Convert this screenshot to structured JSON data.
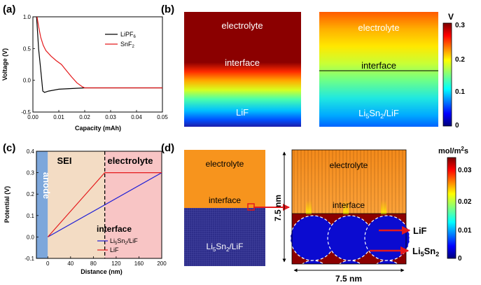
{
  "figure": {
    "panel_labels": [
      "(a)",
      "(b)",
      "(c)",
      "(d)"
    ]
  },
  "colors": {
    "lipf6": "#000000",
    "snf2": "#e41a1c",
    "li5sn2": "#1f1fd6",
    "lif": "#e41a1c",
    "electrolyte_a": "#8b0000",
    "electrolyte_d": "#f7941d",
    "anode_band": "#7da7db",
    "sei_region": "#f3dcc4",
    "electrolyte_region": "#f8c5c5",
    "li5sn2_solid": "#2b2b86"
  },
  "panel_b": {
    "left_labels": {
      "top": "electrolyte",
      "middle": "interface",
      "bottom": "LiF"
    },
    "right_labels": {
      "top": "electrolyte",
      "middle": "interface",
      "bottom_main": "Li",
      "bottom_sub1": "5",
      "bottom_mid": "Sn",
      "bottom_sub2": "2",
      "bottom_tail": "/LiF"
    },
    "colorbar": {
      "unit": "V",
      "ticks": [
        "0.3",
        "0.2",
        "0.1",
        "0"
      ]
    }
  },
  "panel_d": {
    "left_labels": {
      "top": "electrolyte",
      "middle": "interface",
      "bottom_main": "Li",
      "bottom_sub1": "5",
      "bottom_mid": "Sn",
      "bottom_sub2": "2",
      "bottom_tail": "/LiF"
    },
    "right_labels": {
      "top": "electrolyte",
      "middle": "interface"
    },
    "dim_vertical": "7.5 nm",
    "dim_horizontal": "7.5 nm",
    "arrow_lif": "LiF",
    "arrow_li5sn2_main": "Li",
    "arrow_li5sn2_sub1": "5",
    "arrow_li5sn2_mid": "Sn",
    "arrow_li5sn2_sub2": "2",
    "colorbar": {
      "unit_main": "mol/m",
      "unit_sup": "2",
      "unit_tail": "s",
      "ticks": [
        "0.03",
        "0.02",
        "0.01",
        "0"
      ]
    }
  },
  "chart_data": [
    {
      "panel": "(a)",
      "type": "line",
      "title": "",
      "xlabel": "Capacity (mAh)",
      "ylabel": "Voltage (V)",
      "xlim": [
        0,
        0.05
      ],
      "ylim": [
        -0.5,
        1.0
      ],
      "xticks": [
        "0.00",
        "0.01",
        "0.02",
        "0.03",
        "0.04",
        "0.05"
      ],
      "yticks": [
        "-0.5",
        "0.0",
        "0.5",
        "1.0"
      ],
      "legend": [
        {
          "name": "LiPF",
          "sub": "6"
        },
        {
          "name": "SnF",
          "sub": "2"
        }
      ],
      "series": [
        {
          "name": "LiPF6",
          "x": [
            0.0014,
            0.0018,
            0.0022,
            0.0028,
            0.0033,
            0.0038,
            0.0045,
            0.006,
            0.01,
            0.02,
            0.03,
            0.05
          ],
          "y": [
            1.0,
            0.75,
            0.5,
            0.25,
            0.05,
            -0.17,
            -0.19,
            -0.17,
            -0.14,
            -0.12,
            -0.12,
            -0.12
          ]
        },
        {
          "name": "SnF2",
          "x": [
            0.0016,
            0.0022,
            0.003,
            0.004,
            0.005,
            0.007,
            0.009,
            0.011,
            0.013,
            0.015,
            0.017,
            0.019,
            0.02,
            0.03,
            0.05
          ],
          "y": [
            1.0,
            0.85,
            0.68,
            0.55,
            0.47,
            0.38,
            0.31,
            0.25,
            0.15,
            0.05,
            -0.04,
            -0.1,
            -0.12,
            -0.12,
            -0.12
          ]
        }
      ]
    },
    {
      "panel": "(c)",
      "type": "line",
      "title": "",
      "xlabel": "Distance (nm)",
      "ylabel": "Potential (V)",
      "xlim": [
        -20,
        200
      ],
      "ylim": [
        -0.1,
        0.4
      ],
      "xticks": [
        "0",
        "40",
        "80",
        "120",
        "160",
        "200"
      ],
      "yticks": [
        "-0.1",
        "0.0",
        "0.1",
        "0.2",
        "0.3",
        "0.4"
      ],
      "regions": {
        "anode": "anode",
        "sei": "SEI",
        "electrolyte": "electrolyte",
        "interface": "interface"
      },
      "interface_x": 100,
      "legend": [
        {
          "name": "Li",
          "sub1": "5",
          "mid": "Sn",
          "sub2": "2",
          "tail": "/LiF"
        },
        {
          "name": "LiF",
          "sub1": "",
          "mid": "",
          "sub2": "",
          "tail": ""
        }
      ],
      "series": [
        {
          "name": "Li5Sn2/LiF",
          "x": [
            0,
            200
          ],
          "y": [
            0.0,
            0.3
          ]
        },
        {
          "name": "LiF",
          "x": [
            0,
            100,
            200
          ],
          "y": [
            0.0,
            0.3,
            0.3
          ]
        }
      ]
    }
  ]
}
